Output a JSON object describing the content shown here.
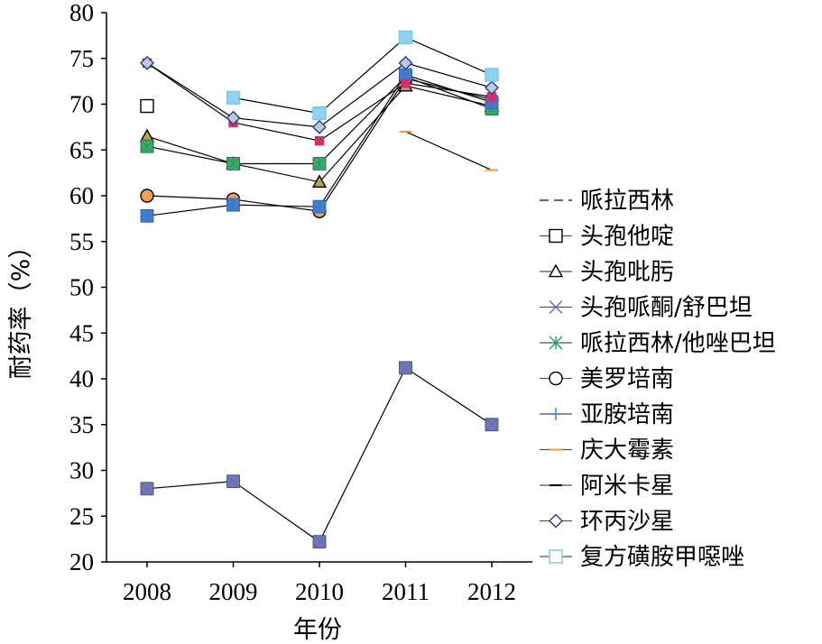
{
  "chart_data": {
    "type": "line",
    "title": "",
    "xlabel": "年份",
    "ylabel": "耐药率（%）",
    "x": [
      "2008",
      "2009",
      "2010",
      "2011",
      "2012"
    ],
    "y_ticks": [
      "20",
      "25",
      "30",
      "35",
      "40",
      "45",
      "50",
      "55",
      "60",
      "65",
      "70",
      "75",
      "80"
    ],
    "ylim": [
      20,
      80
    ],
    "grid": false,
    "legend_position": "right",
    "series": [
      {
        "name": "哌拉西林",
        "values": [
          null,
          null,
          null,
          null,
          null
        ],
        "color": "#4472c4",
        "marker": "dash",
        "line": "dashed"
      },
      {
        "name": "头孢他啶",
        "values": [
          69.8,
          null,
          null,
          null,
          null
        ],
        "color": "#000000",
        "marker": "square-open"
      },
      {
        "name": "头孢吡肟",
        "values": [
          66.5,
          63.5,
          61.5,
          72.0,
          69.8
        ],
        "color": "#000000",
        "marker": "triangle-open",
        "fill": "#b8a056"
      },
      {
        "name": "头孢哌酮/舒巴坦",
        "values": [
          28.0,
          28.8,
          22.2,
          41.2,
          35.0
        ],
        "color": "#6070b8",
        "marker": "cross",
        "fill": "#7078b8"
      },
      {
        "name": "哌拉西林/他唑巴坦",
        "values": [
          65.4,
          63.5,
          63.5,
          73.0,
          69.5
        ],
        "color": "#20a070",
        "marker": "asterisk",
        "fill": "#3cb060"
      },
      {
        "name": "美罗培南",
        "values": [
          60.0,
          59.6,
          58.3,
          72.8,
          70.5
        ],
        "color": "#000000",
        "marker": "circle-open",
        "fill": "#f0a050"
      },
      {
        "name": "亚胺培南",
        "values": [
          57.8,
          59.0,
          58.8,
          73.2,
          70.2
        ],
        "color": "#4472c4",
        "marker": "plus",
        "fill": "#3d7fd0"
      },
      {
        "name": "庆大霉素",
        "values": [
          null,
          null,
          null,
          67.0,
          62.8
        ],
        "color": "#f0a030",
        "marker": "dash"
      },
      {
        "name": "阿米卡星",
        "values": [
          74.5,
          68.0,
          66.0,
          72.3,
          70.8
        ],
        "color": "#000000",
        "marker": "dash",
        "fill": "#d0306a"
      },
      {
        "name": "环丙沙星",
        "values": [
          74.5,
          68.5,
          67.5,
          74.5,
          71.8
        ],
        "color": "#2a3f6e",
        "marker": "diamond-open",
        "fill": "#b8c8e8"
      },
      {
        "name": "复方磺胺甲噁唑",
        "values": [
          null,
          70.7,
          69.0,
          77.3,
          73.2
        ],
        "color": "#7ec4ec",
        "marker": "square-open",
        "fill": "#90d0f0"
      }
    ]
  }
}
